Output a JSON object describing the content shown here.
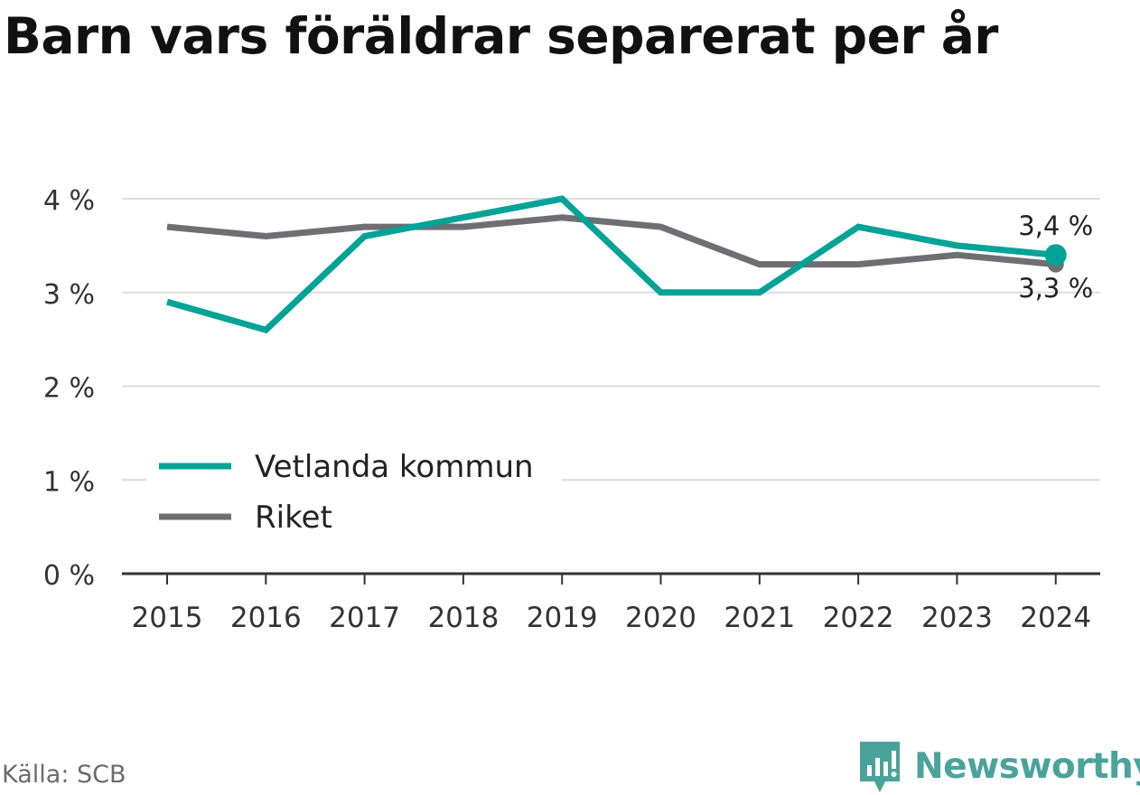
{
  "title": "Barn vars föräldrar separerat per år",
  "source": "Källa: SCB",
  "brand": {
    "name": "Newsworthy",
    "icon": "newsworthy-logo-icon"
  },
  "colors": {
    "primary": "#00a396",
    "secondary": "#6f6e72",
    "grid": "#dcdcdc",
    "axis": "#333333",
    "brand": "#4aa39a"
  },
  "chart_data": {
    "type": "line",
    "categories": [
      "2015",
      "2016",
      "2017",
      "2018",
      "2019",
      "2020",
      "2021",
      "2022",
      "2023",
      "2024"
    ],
    "series": [
      {
        "name": "Vetlanda kommun",
        "color": "#00a396",
        "values": [
          2.9,
          2.6,
          3.6,
          3.8,
          4.0,
          3.0,
          3.0,
          3.7,
          3.5,
          3.4
        ]
      },
      {
        "name": "Riket",
        "color": "#6f6e72",
        "values": [
          3.7,
          3.6,
          3.7,
          3.7,
          3.8,
          3.7,
          3.3,
          3.3,
          3.4,
          3.3
        ]
      }
    ],
    "yticks": [
      "0 %",
      "1 %",
      "2 %",
      "3 %",
      "4 %"
    ],
    "ylim": [
      0,
      4
    ],
    "end_labels": [
      "3,4 %",
      "3,3 %"
    ],
    "grid": true,
    "legend_position": "bottom-left"
  }
}
